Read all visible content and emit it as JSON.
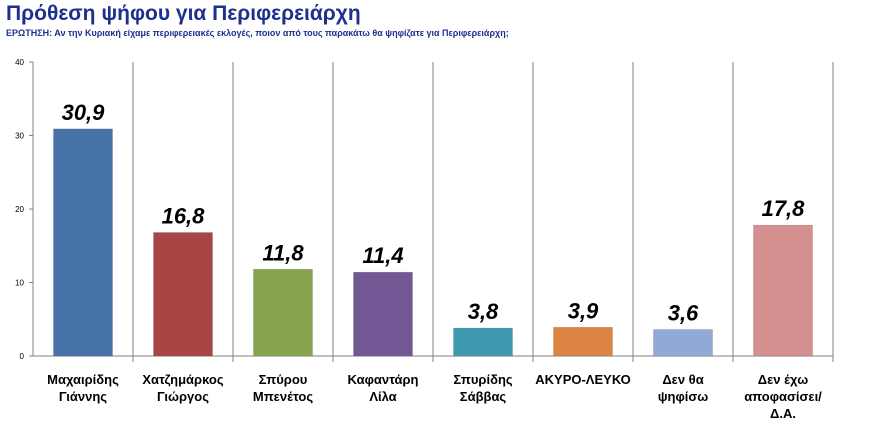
{
  "header": {
    "title": "Πρόθεση ψήφου για Περιφερειάρχη",
    "question": "ΕΡΩΤΗΣΗ: Αν την Κυριακή είχαμε περιφερειακές εκλογές, ποιον από τους παρακάτω θα ψηφίζατε για Περιφερειάρχη;"
  },
  "chart_data": {
    "type": "bar",
    "title": "Πρόθεση ψήφου για Περιφερειάρχη",
    "categories": [
      [
        "Μαχαιρίδης",
        "Γιάννης"
      ],
      [
        "Χατζημάρκος",
        "Γιώργος"
      ],
      [
        "Σπύρου",
        "Μπενέτος"
      ],
      [
        "Καφαντάρη",
        "Λίλα"
      ],
      [
        "Σπυρίδης",
        "Σάββας"
      ],
      [
        "ΑΚΥΡΟ-ΛΕΥΚΟ"
      ],
      [
        "Δεν θα",
        "ψηφίσω"
      ],
      [
        "Δεν έχω",
        "αποφασίσει/",
        "Δ.Α."
      ]
    ],
    "values": [
      30.9,
      16.8,
      11.8,
      11.4,
      3.8,
      3.9,
      3.6,
      17.8
    ],
    "value_labels": [
      "30,9",
      "16,8",
      "11,8",
      "11,4",
      "3,8",
      "3,9",
      "3,6",
      "17,8"
    ],
    "colors": [
      "#4672a8",
      "#a94444",
      "#87a44c",
      "#715895",
      "#3d9aaf",
      "#dc8442",
      "#91a9d4",
      "#d48f8f"
    ],
    "yticks": [
      "0",
      "10",
      "20",
      "30",
      "40"
    ],
    "ylim": [
      0,
      40
    ],
    "grid": false,
    "category_separators": true,
    "legend": "none",
    "xlabel": "",
    "ylabel": ""
  }
}
